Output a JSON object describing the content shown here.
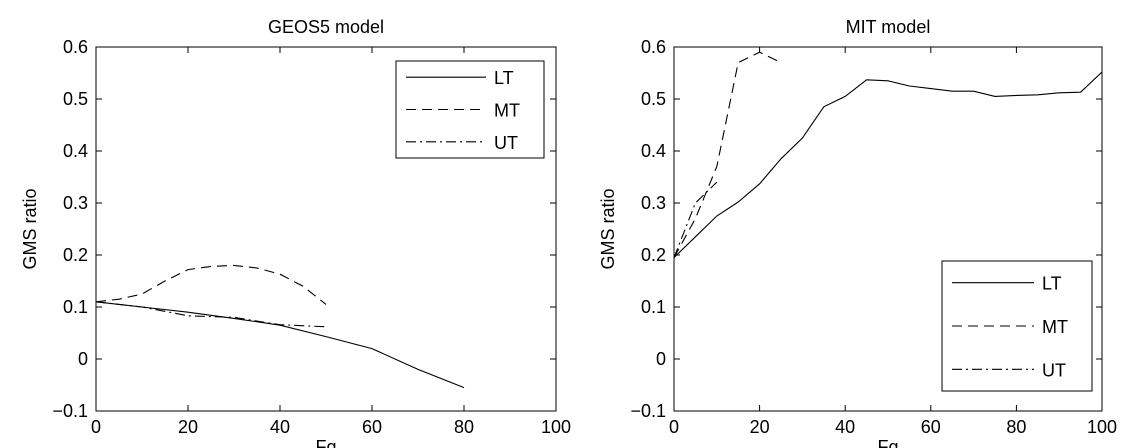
{
  "chart_data": [
    {
      "type": "line",
      "title": "GEOS5 model",
      "xlabel": "Fq",
      "ylabel": "GMS ratio",
      "xlim": [
        0,
        100
      ],
      "ylim": [
        -0.1,
        0.6
      ],
      "xticks": [
        "0",
        "20",
        "40",
        "60",
        "80",
        "100"
      ],
      "yticks": [
        "−0.1",
        "0",
        "0.1",
        "0.2",
        "0.3",
        "0.4",
        "0.5",
        "0.6"
      ],
      "legend_position": "top-right",
      "series": [
        {
          "name": "LT",
          "style": "solid",
          "x": [
            0,
            10,
            20,
            30,
            40,
            50,
            60,
            70,
            80
          ],
          "y": [
            0.11,
            0.1,
            0.09,
            0.078,
            0.065,
            0.043,
            0.02,
            -0.02,
            -0.055
          ]
        },
        {
          "name": "MT",
          "style": "dashed",
          "x": [
            0,
            5,
            10,
            15,
            20,
            25,
            30,
            35,
            40,
            45,
            50
          ],
          "y": [
            0.11,
            0.115,
            0.125,
            0.15,
            0.172,
            0.178,
            0.18,
            0.175,
            0.163,
            0.14,
            0.105
          ]
        },
        {
          "name": "UT",
          "style": "dashdot",
          "x": [
            0,
            10,
            20,
            30,
            40,
            50
          ],
          "y": [
            0.11,
            0.1,
            0.083,
            0.08,
            0.066,
            0.062
          ]
        }
      ]
    },
    {
      "type": "line",
      "title": "MIT model",
      "xlabel": "Fq",
      "ylabel": "GMS ratio",
      "xlim": [
        0,
        100
      ],
      "ylim": [
        -0.1,
        0.6
      ],
      "xticks": [
        "0",
        "20",
        "40",
        "60",
        "80",
        "100"
      ],
      "yticks": [
        "−0.1",
        "0",
        "0.1",
        "0.2",
        "0.3",
        "0.4",
        "0.5",
        "0.6"
      ],
      "legend_position": "bottom-right",
      "series": [
        {
          "name": "LT",
          "style": "solid",
          "x": [
            0,
            5,
            10,
            15,
            20,
            25,
            30,
            35,
            40,
            45,
            50,
            55,
            60,
            65,
            70,
            75,
            80,
            85,
            90,
            95,
            100
          ],
          "y": [
            0.195,
            0.235,
            0.275,
            0.302,
            0.337,
            0.385,
            0.425,
            0.485,
            0.505,
            0.537,
            0.535,
            0.525,
            0.52,
            0.515,
            0.515,
            0.505,
            0.507,
            0.508,
            0.512,
            0.513,
            0.552
          ]
        },
        {
          "name": "MT",
          "style": "dashed",
          "x": [
            0,
            5,
            10,
            15,
            20,
            25
          ],
          "y": [
            0.195,
            0.27,
            0.37,
            0.57,
            0.59,
            0.57
          ]
        },
        {
          "name": "UT",
          "style": "dashdot",
          "x": [
            0,
            5,
            10
          ],
          "y": [
            0.195,
            0.3,
            0.34
          ]
        }
      ]
    }
  ]
}
